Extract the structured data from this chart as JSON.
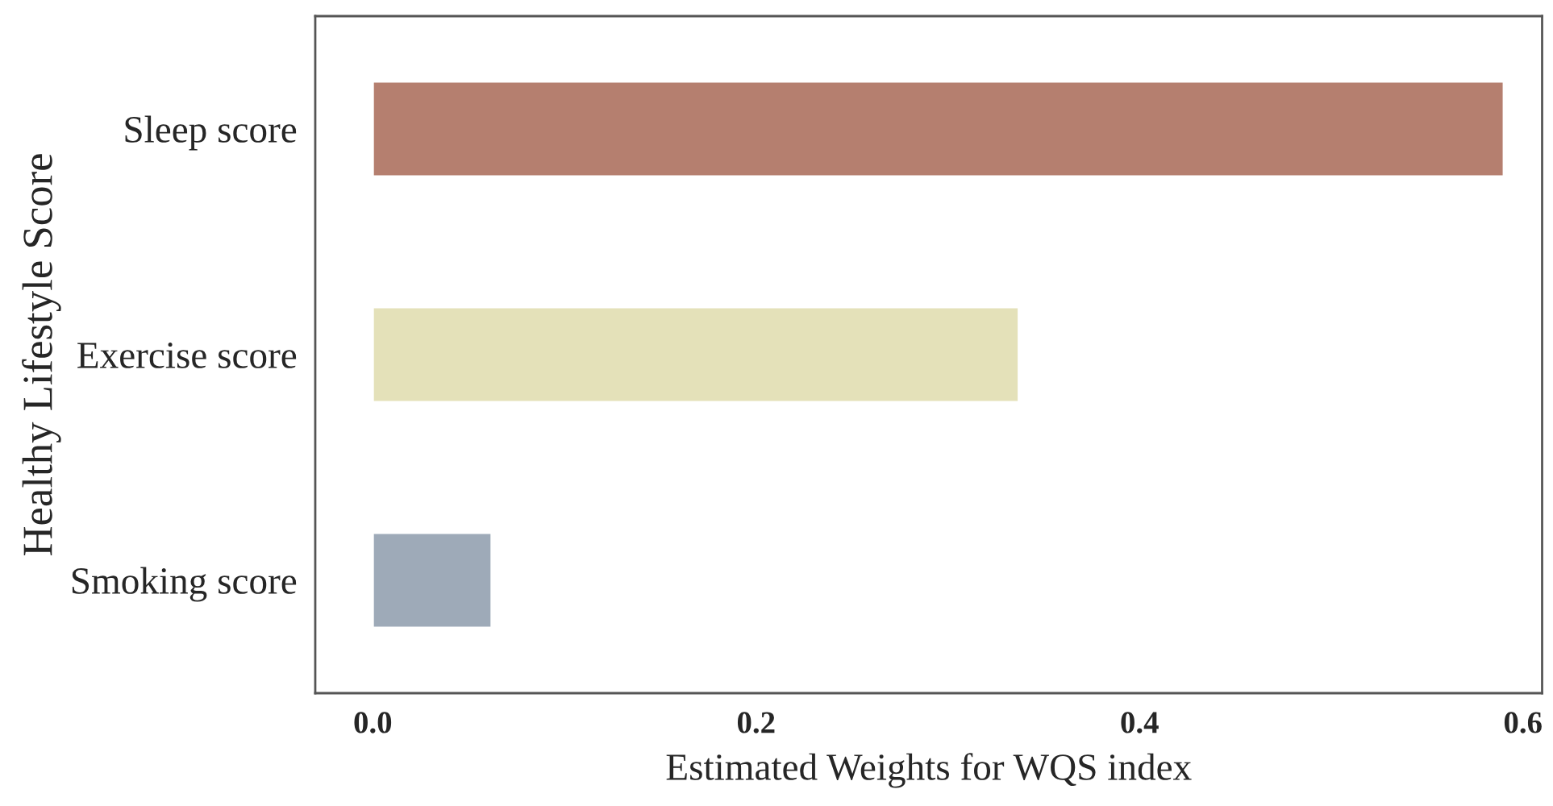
{
  "chart_data": {
    "type": "bar",
    "orientation": "horizontal",
    "xlabel": "Estimated Weights for WQS index",
    "ylabel": "Healthy Lifestyle Score",
    "categories": [
      "Sleep score",
      "Exercise score",
      "Smoking score"
    ],
    "values": [
      0.59,
      0.337,
      0.062
    ],
    "colors": [
      "#b57f6f",
      "#e4e1b9",
      "#9eaab8"
    ],
    "xlim": [
      -0.03,
      0.61
    ],
    "xticks": [
      {
        "value": 0,
        "label": "0.0"
      },
      0.2,
      0.4,
      0.6
    ],
    "grid": false,
    "legend": false
  }
}
